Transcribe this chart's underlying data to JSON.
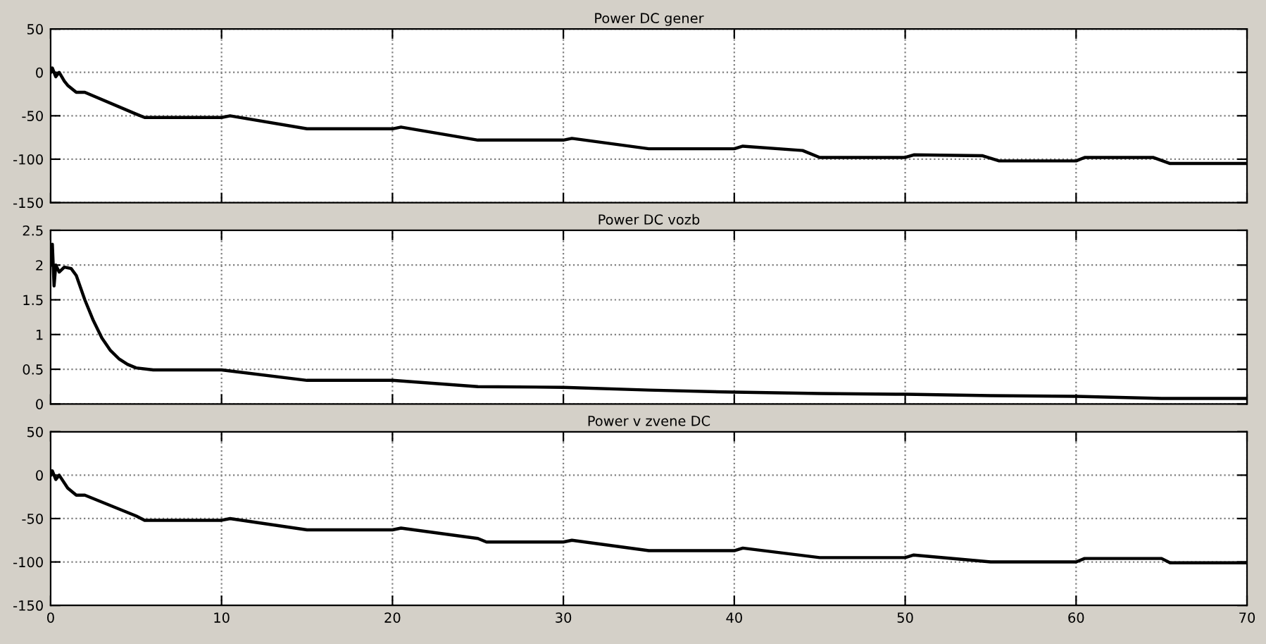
{
  "chart_data": [
    {
      "type": "line",
      "title": "Power DC gener",
      "xlim": [
        0,
        70
      ],
      "xticks": [
        0,
        10,
        20,
        30,
        40,
        50,
        60,
        70
      ],
      "ylim": [
        -150,
        50
      ],
      "yticks": [
        -150,
        -100,
        -50,
        0,
        50
      ],
      "grid": true,
      "tick_labels": "y",
      "line_style": "solid",
      "series": [
        {
          "color": "#000000",
          "x": [
            0,
            0.1,
            0.3,
            0.5,
            0.8,
            1,
            1.5,
            2,
            5,
            5.5,
            10,
            10.5,
            15,
            20,
            20.5,
            25,
            30,
            30.5,
            35,
            40,
            40.5,
            44,
            45,
            50,
            50.5,
            54.5,
            55.5,
            60,
            60.5,
            64.5,
            65.5,
            70
          ],
          "values": [
            0,
            5,
            -5,
            0,
            -10,
            -15,
            -23,
            -23,
            -48,
            -52,
            -52,
            -50,
            -65,
            -65,
            -63,
            -78,
            -78,
            -76,
            -88,
            -88,
            -85,
            -90,
            -98,
            -98,
            -95,
            -96,
            -102,
            -102,
            -98,
            -98,
            -105,
            -105
          ]
        }
      ]
    },
    {
      "type": "line",
      "title": "Power DC vozb",
      "xlim": [
        0,
        70
      ],
      "xticks": [
        0,
        10,
        20,
        30,
        40,
        50,
        60,
        70
      ],
      "ylim": [
        0,
        2.5
      ],
      "yticks": [
        0,
        0.5,
        1,
        1.5,
        2,
        2.5
      ],
      "grid": true,
      "tick_labels": "y",
      "line_style": "solid",
      "series": [
        {
          "color": "#000000",
          "x": [
            0,
            0.1,
            0.2,
            0.3,
            0.5,
            0.8,
            1.2,
            1.5,
            2,
            2.5,
            3,
            3.5,
            4,
            4.5,
            5,
            6,
            10,
            15,
            20,
            25,
            30,
            35,
            40,
            45,
            50,
            55,
            60,
            65,
            70
          ],
          "values": [
            2,
            2.3,
            1.7,
            2.0,
            1.9,
            1.97,
            1.95,
            1.85,
            1.5,
            1.2,
            0.95,
            0.77,
            0.65,
            0.57,
            0.52,
            0.49,
            0.49,
            0.34,
            0.34,
            0.25,
            0.24,
            0.2,
            0.17,
            0.15,
            0.14,
            0.12,
            0.11,
            0.08,
            0.08
          ]
        }
      ]
    },
    {
      "type": "line",
      "title": "Power v zvene DC",
      "xlim": [
        0,
        70
      ],
      "xticks": [
        0,
        10,
        20,
        30,
        40,
        50,
        60,
        70
      ],
      "ylim": [
        -150,
        50
      ],
      "yticks": [
        -150,
        -100,
        -50,
        0,
        50
      ],
      "grid": true,
      "line_style": "solid",
      "series": [
        {
          "color": "#000000",
          "x": [
            0,
            0.1,
            0.3,
            0.5,
            1,
            1.5,
            2,
            5,
            5.5,
            10,
            10.5,
            15,
            20,
            20.5,
            25,
            25.5,
            30,
            30.5,
            35,
            40,
            40.5,
            45,
            50,
            50.5,
            55,
            60,
            60.5,
            65,
            65.5,
            70
          ],
          "values": [
            0,
            5,
            -5,
            0,
            -15,
            -23,
            -23,
            -47,
            -52,
            -52,
            -50,
            -63,
            -63,
            -61,
            -73,
            -77,
            -77,
            -75,
            -87,
            -87,
            -84,
            -95,
            -95,
            -92,
            -100,
            -100,
            -96,
            -96,
            -101,
            -101
          ]
        }
      ]
    }
  ]
}
